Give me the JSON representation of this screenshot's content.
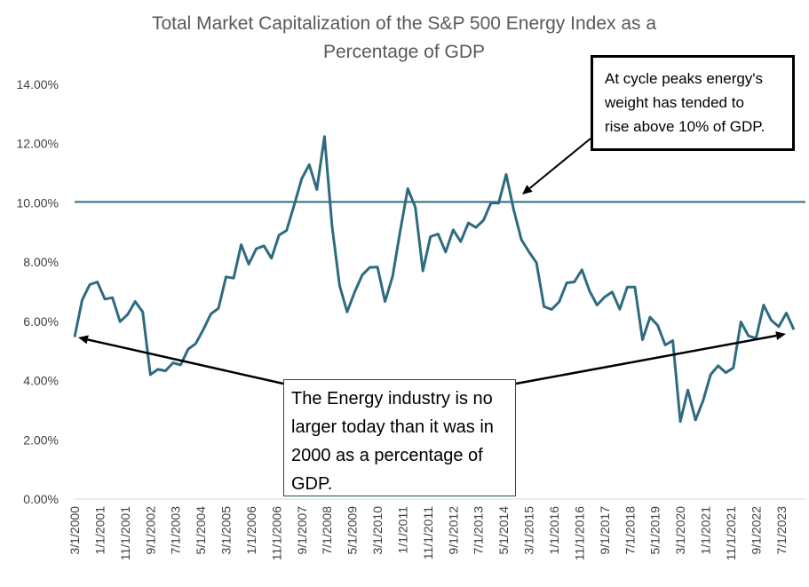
{
  "chart_data": {
    "type": "line",
    "title_lines": [
      "Total Market Capitalization of the S&P 500 Energy Index as a",
      "Percentage of GDP"
    ],
    "y_ticks": [
      "0.00%",
      "2.00%",
      "4.00%",
      "6.00%",
      "8.00%",
      "10.00%",
      "12.00%",
      "14.00%"
    ],
    "ylim": [
      0,
      14
    ],
    "x_tick_labels": [
      "3/1/2000",
      "1/1/2001",
      "11/1/2001",
      "9/1/2002",
      "7/1/2003",
      "5/1/2004",
      "3/1/2005",
      "1/1/2006",
      "11/1/2006",
      "9/1/2007",
      "7/1/2008",
      "5/1/2009",
      "3/1/2010",
      "1/1/2011",
      "11/1/2011",
      "9/1/2012",
      "7/1/2013",
      "5/1/2014",
      "3/1/2015",
      "1/1/2016",
      "11/1/2016",
      "9/1/2017",
      "7/1/2018",
      "5/1/2019",
      "3/1/2020",
      "1/1/2021",
      "11/1/2021",
      "9/1/2022",
      "7/1/2023"
    ],
    "reference_line": {
      "value": 10.03,
      "color": "#2e6b80"
    },
    "line_color": "#2e6b80",
    "series": [
      {
        "values": [
          5.47,
          6.72,
          7.24,
          7.33,
          6.75,
          6.8,
          5.99,
          6.23,
          6.67,
          6.32,
          4.2,
          4.38,
          4.33,
          4.6,
          4.53,
          5.06,
          5.25,
          5.72,
          6.25,
          6.44,
          7.5,
          7.46,
          8.59,
          7.93,
          8.45,
          8.55,
          8.13,
          8.91,
          9.07,
          9.93,
          10.82,
          11.29,
          10.45,
          12.24,
          9.22,
          7.21,
          6.32,
          7.0,
          7.57,
          7.82,
          7.83,
          6.67,
          7.52,
          9.04,
          10.48,
          9.85,
          7.7,
          8.86,
          8.95,
          8.34,
          9.09,
          8.69,
          9.32,
          9.17,
          9.41,
          10.0,
          9.99,
          10.96,
          9.76,
          8.76,
          8.35,
          7.98,
          6.5,
          6.4,
          6.66,
          7.3,
          7.33,
          7.74,
          7.03,
          6.55,
          6.82,
          6.99,
          6.41,
          7.16,
          7.16,
          5.38,
          6.14,
          5.87,
          5.2,
          5.35,
          2.62,
          3.68,
          2.67,
          3.32,
          4.2,
          4.5,
          4.27,
          4.43,
          5.98,
          5.51,
          5.43,
          6.55,
          6.04,
          5.82,
          6.28,
          5.72
        ]
      }
    ],
    "annotations": [
      {
        "id": "cycle-peaks",
        "lines": [
          "At cycle peaks energy's",
          "weight has tended to",
          "rise above 10% of GDP."
        ]
      },
      {
        "id": "no-larger",
        "lines": [
          "The Energy industry is no",
          "larger today than it was in",
          "2000 as a percentage of",
          "GDP."
        ]
      }
    ]
  }
}
